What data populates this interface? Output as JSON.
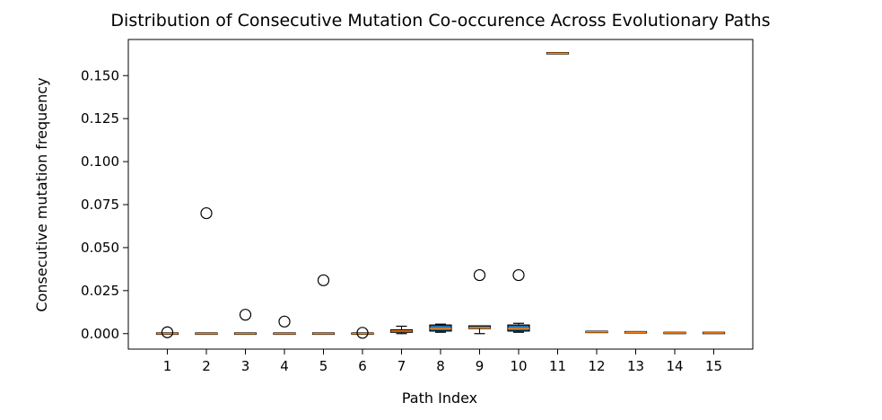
{
  "chart_data": {
    "type": "boxplot",
    "title": "Distribution of Consecutive Mutation Co-occurence Across Evolutionary Paths",
    "xlabel": "Path Index",
    "ylabel": "Consecutive mutation frequency",
    "ylim": [
      -0.009,
      0.171
    ],
    "yticks": [
      "0.000",
      "0.025",
      "0.050",
      "0.075",
      "0.100",
      "0.125",
      "0.150"
    ],
    "ytick_values": [
      0,
      0.025,
      0.05,
      0.075,
      0.1,
      0.125,
      0.15
    ],
    "grid": false,
    "legend": "none",
    "colors": {
      "box": "#1f77b4",
      "median": "#ff7f0e",
      "line": "#000000"
    },
    "categories": [
      "1",
      "2",
      "3",
      "4",
      "5",
      "6",
      "7",
      "8",
      "9",
      "10",
      "11",
      "12",
      "13",
      "14",
      "15"
    ],
    "boxes": [
      {
        "min": 0.0,
        "q1": 0.0,
        "median": 0.0,
        "q3": 0.0,
        "max": 0.0,
        "outliers": [
          0.0008
        ]
      },
      {
        "min": 0.0,
        "q1": 0.0,
        "median": 0.0,
        "q3": 0.0,
        "max": 0.0,
        "outliers": [
          0.07
        ]
      },
      {
        "min": 0.0,
        "q1": 0.0,
        "median": 0.0,
        "q3": 0.0,
        "max": 0.0,
        "outliers": [
          0.011
        ]
      },
      {
        "min": 0.0,
        "q1": 0.0,
        "median": 0.0,
        "q3": 0.0,
        "max": 0.0,
        "outliers": [
          0.007
        ]
      },
      {
        "min": 0.0,
        "q1": 0.0,
        "median": 0.0,
        "q3": 0.0,
        "max": 0.0,
        "outliers": [
          0.031
        ]
      },
      {
        "min": 0.0,
        "q1": 0.0,
        "median": 0.0,
        "q3": 0.0,
        "max": 0.0,
        "outliers": [
          0.0005
        ]
      },
      {
        "min": 0.0,
        "q1": 0.0008,
        "median": 0.0015,
        "q3": 0.0022,
        "max": 0.0043,
        "outliers": []
      },
      {
        "min": 0.0008,
        "q1": 0.0015,
        "median": 0.003,
        "q3": 0.005,
        "max": 0.0055,
        "outliers": []
      },
      {
        "min": 0.0,
        "q1": 0.003,
        "median": 0.0035,
        "q3": 0.0045,
        "max": 0.0045,
        "outliers": [
          0.034
        ]
      },
      {
        "min": 0.0008,
        "q1": 0.0015,
        "median": 0.003,
        "q3": 0.005,
        "max": 0.006,
        "outliers": [
          0.034
        ]
      },
      {
        "min": 0.163,
        "q1": 0.163,
        "median": 0.163,
        "q3": 0.163,
        "max": 0.163,
        "outliers": []
      },
      {
        "min": 0.001,
        "q1": 0.001,
        "median": 0.001,
        "q3": 0.001,
        "max": 0.001,
        "outliers": []
      },
      {
        "min": 0.0008,
        "q1": 0.0008,
        "median": 0.0008,
        "q3": 0.0008,
        "max": 0.0008,
        "outliers": []
      },
      {
        "min": 0.0004,
        "q1": 0.0004,
        "median": 0.0004,
        "q3": 0.0004,
        "max": 0.0004,
        "outliers": []
      },
      {
        "min": 0.0004,
        "q1": 0.0004,
        "median": 0.0004,
        "q3": 0.0004,
        "max": 0.0004,
        "outliers": []
      }
    ]
  }
}
